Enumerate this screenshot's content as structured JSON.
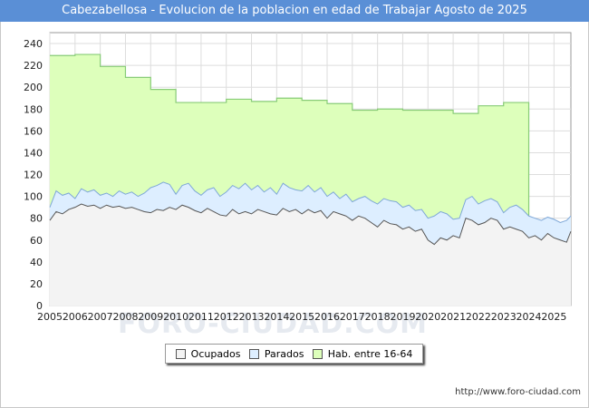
{
  "header": {
    "title": "Cabezabellosa - Evolucion de la poblacion en edad de Trabajar Agosto de 2025"
  },
  "watermark": "FORO-CIUDAD.COM",
  "source": "http://www.foro-ciudad.com",
  "colors": {
    "title_bg": "#5a8fd6",
    "ocupados_fill": "#f3f3f3",
    "ocupados_line": "#555555",
    "parados_fill": "#ddeeff",
    "parados_line": "#7fa8d8",
    "hab_fill": "#ddffbb",
    "hab_line": "#88cc77"
  },
  "chart_data": {
    "type": "area",
    "title": "Cabezabellosa - Evolucion de la poblacion en edad de Trabajar Agosto de 2025",
    "xlabel": "",
    "ylabel": "",
    "xlim": [
      2005,
      2025.67
    ],
    "ylim": [
      0,
      250
    ],
    "yticks": [
      0,
      20,
      40,
      60,
      80,
      100,
      120,
      140,
      160,
      180,
      200,
      220,
      240
    ],
    "xticks": [
      "2005",
      "2006",
      "2007",
      "2008",
      "2009",
      "2010",
      "2011",
      "2012",
      "2013",
      "2014",
      "2015",
      "2016",
      "2017",
      "2018",
      "2019",
      "2020",
      "2021",
      "2022",
      "2023",
      "2024",
      "2025"
    ],
    "grid": true,
    "legend": {
      "position": "bottom-center",
      "entries": [
        "Ocupados",
        "Parados",
        "Hab. entre 16-64"
      ]
    },
    "series": [
      {
        "name": "Hab. entre 16-64",
        "step": true,
        "x": [
          2005,
          2006,
          2007,
          2008,
          2009,
          2010,
          2011,
          2012,
          2013,
          2014,
          2015,
          2016,
          2017,
          2018,
          2019,
          2020,
          2021,
          2022,
          2023,
          2024.0
        ],
        "values": [
          229,
          230,
          219,
          209,
          198,
          186,
          186,
          189,
          187,
          190,
          188,
          185,
          179,
          180,
          179,
          179,
          176,
          183,
          186,
          0
        ]
      },
      {
        "name": "Parados",
        "x": [
          2005.0,
          2005.25,
          2005.5,
          2005.75,
          2006.0,
          2006.25,
          2006.5,
          2006.75,
          2007.0,
          2007.25,
          2007.5,
          2007.75,
          2008.0,
          2008.25,
          2008.5,
          2008.75,
          2009.0,
          2009.25,
          2009.5,
          2009.75,
          2010.0,
          2010.25,
          2010.5,
          2010.75,
          2011.0,
          2011.25,
          2011.5,
          2011.75,
          2012.0,
          2012.25,
          2012.5,
          2012.75,
          2013.0,
          2013.25,
          2013.5,
          2013.75,
          2014.0,
          2014.25,
          2014.5,
          2014.75,
          2015.0,
          2015.25,
          2015.5,
          2015.75,
          2016.0,
          2016.25,
          2016.5,
          2016.75,
          2017.0,
          2017.25,
          2017.5,
          2017.75,
          2018.0,
          2018.25,
          2018.5,
          2018.75,
          2019.0,
          2019.25,
          2019.5,
          2019.75,
          2020.0,
          2020.25,
          2020.5,
          2020.75,
          2021.0,
          2021.25,
          2021.5,
          2021.75,
          2022.0,
          2022.25,
          2022.5,
          2022.75,
          2023.0,
          2023.25,
          2023.5,
          2023.75,
          2024.0,
          2024.25,
          2024.5,
          2024.75,
          2025.0,
          2025.25,
          2025.5,
          2025.67
        ],
        "values": [
          90,
          105,
          101,
          103,
          98,
          107,
          104,
          106,
          101,
          103,
          100,
          105,
          102,
          104,
          100,
          103,
          108,
          110,
          113,
          111,
          102,
          110,
          112,
          105,
          101,
          106,
          108,
          100,
          104,
          110,
          107,
          112,
          106,
          110,
          104,
          108,
          102,
          112,
          108,
          106,
          105,
          110,
          104,
          108,
          100,
          104,
          98,
          102,
          95,
          98,
          100,
          96,
          93,
          98,
          96,
          95,
          90,
          92,
          87,
          88,
          80,
          82,
          86,
          84,
          79,
          80,
          97,
          100,
          93,
          96,
          98,
          95,
          85,
          90,
          92,
          88,
          82,
          80,
          78,
          81,
          79,
          76,
          78,
          82
        ]
      },
      {
        "name": "Ocupados",
        "x": [
          2005.0,
          2005.25,
          2005.5,
          2005.75,
          2006.0,
          2006.25,
          2006.5,
          2006.75,
          2007.0,
          2007.25,
          2007.5,
          2007.75,
          2008.0,
          2008.25,
          2008.5,
          2008.75,
          2009.0,
          2009.25,
          2009.5,
          2009.75,
          2010.0,
          2010.25,
          2010.5,
          2010.75,
          2011.0,
          2011.25,
          2011.5,
          2011.75,
          2012.0,
          2012.25,
          2012.5,
          2012.75,
          2013.0,
          2013.25,
          2013.5,
          2013.75,
          2014.0,
          2014.25,
          2014.5,
          2014.75,
          2015.0,
          2015.25,
          2015.5,
          2015.75,
          2016.0,
          2016.25,
          2016.5,
          2016.75,
          2017.0,
          2017.25,
          2017.5,
          2017.75,
          2018.0,
          2018.25,
          2018.5,
          2018.75,
          2019.0,
          2019.25,
          2019.5,
          2019.75,
          2020.0,
          2020.25,
          2020.5,
          2020.75,
          2021.0,
          2021.25,
          2021.5,
          2021.75,
          2022.0,
          2022.25,
          2022.5,
          2022.75,
          2023.0,
          2023.25,
          2023.5,
          2023.75,
          2024.0,
          2024.25,
          2024.5,
          2024.75,
          2025.0,
          2025.25,
          2025.5,
          2025.67
        ],
        "values": [
          78,
          86,
          84,
          88,
          90,
          93,
          91,
          92,
          89,
          92,
          90,
          91,
          89,
          90,
          88,
          86,
          85,
          88,
          87,
          90,
          88,
          92,
          90,
          87,
          85,
          89,
          86,
          83,
          82,
          88,
          84,
          86,
          84,
          88,
          86,
          84,
          83,
          89,
          86,
          88,
          84,
          88,
          85,
          87,
          80,
          86,
          84,
          82,
          78,
          82,
          80,
          76,
          72,
          78,
          75,
          74,
          70,
          72,
          68,
          70,
          60,
          56,
          62,
          60,
          64,
          62,
          80,
          78,
          74,
          76,
          80,
          78,
          70,
          72,
          70,
          68,
          62,
          64,
          60,
          66,
          62,
          60,
          58,
          68
        ]
      }
    ]
  },
  "legend": {
    "items": [
      "Ocupados",
      "Parados",
      "Hab. entre 16-64"
    ]
  }
}
